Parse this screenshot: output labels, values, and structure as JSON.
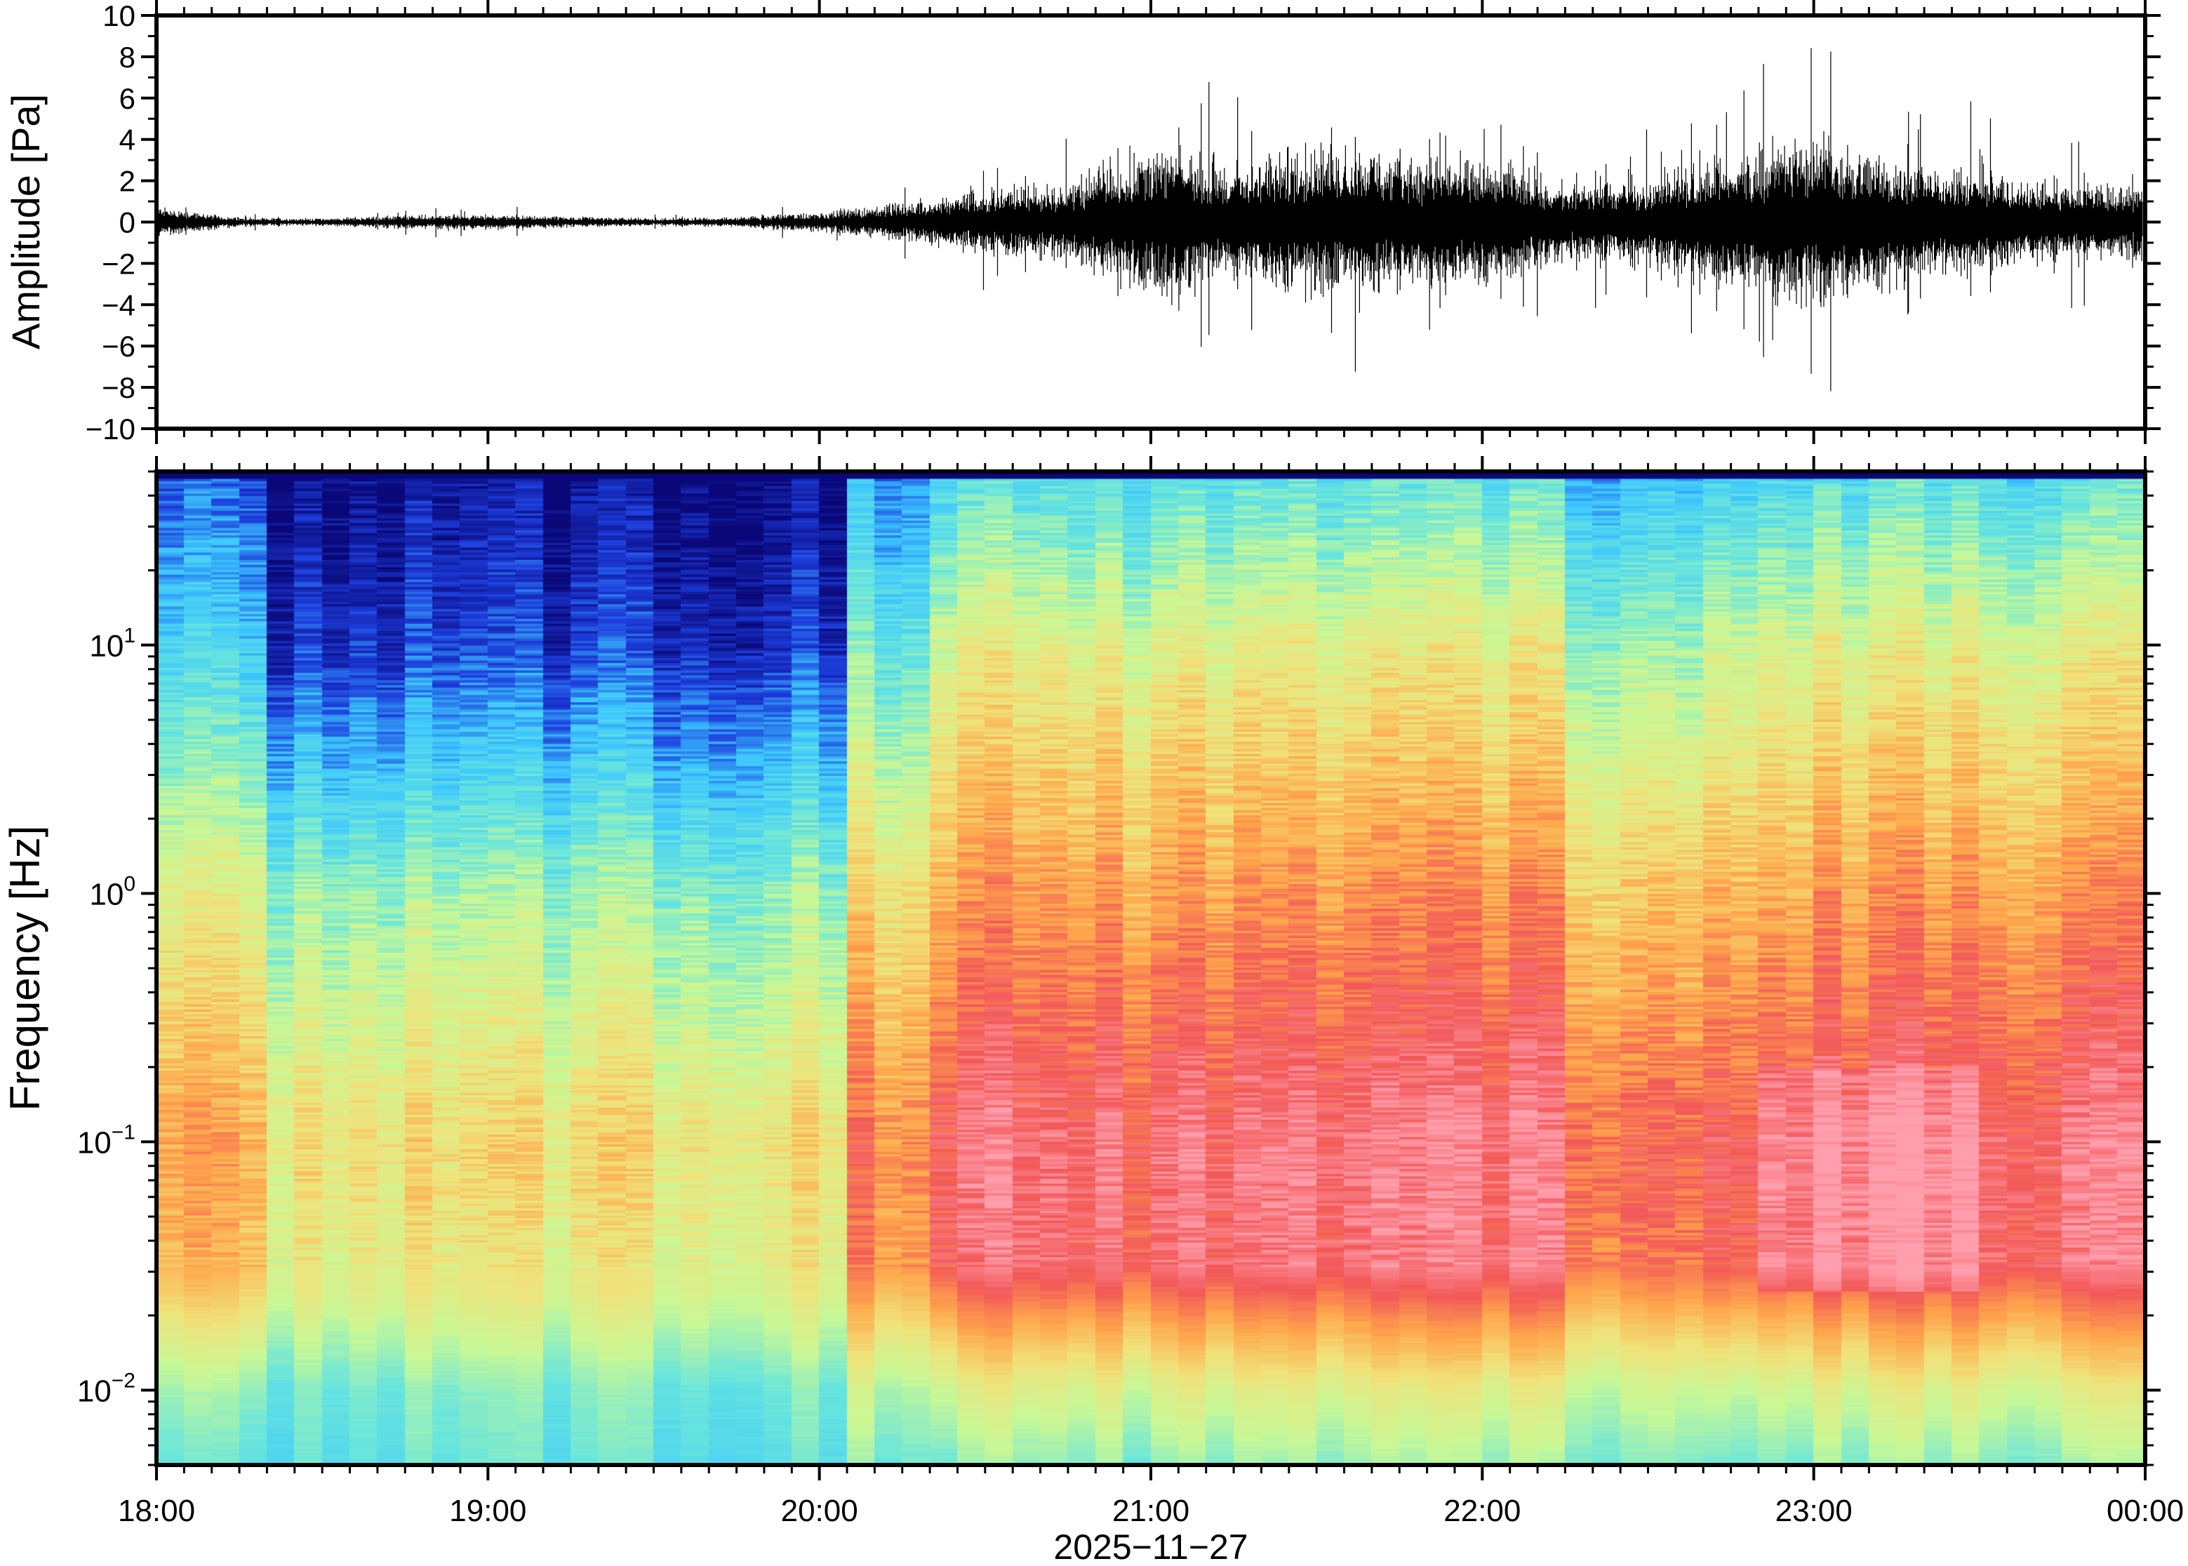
{
  "chart_data": [
    {
      "type": "line",
      "ylabel": "Amplitude [Pa]",
      "ylim": [
        -10,
        10
      ],
      "yticks": [
        "10",
        "8",
        "6",
        "4",
        "2",
        "0",
        "−2",
        "−4",
        "−6",
        "−8",
        "−10"
      ],
      "ytick_values": [
        10,
        8,
        6,
        4,
        2,
        0,
        -2,
        -4,
        -6,
        -8,
        -10
      ],
      "xlim": [
        "2025-11-27 18:00",
        "2025-11-28 00:00"
      ],
      "series": [
        {
          "color": "#000000",
          "envelope_interval_minutes": 15,
          "envelope_start": "18:00",
          "peak_amplitude_pa": [
            1.2,
            0.3,
            0.3,
            0.5,
            0.6,
            0.4,
            0.3,
            0.4,
            0.8,
            1.5,
            2.5,
            3,
            6,
            4.5,
            6,
            5,
            5,
            3,
            3.5,
            5,
            7,
            5,
            4,
            3
          ]
        }
      ],
      "grid": false
    },
    {
      "type": "heatmap",
      "ylabel": "Frequency [Hz]",
      "yscale": "log",
      "ylim": [
        0.005,
        50
      ],
      "yticks": [
        {
          "base": "10",
          "exp": "1",
          "value": 10
        },
        {
          "base": "10",
          "exp": "0",
          "value": 1
        },
        {
          "base": "10",
          "exp": "−1",
          "value": 0.1
        },
        {
          "base": "10",
          "exp": "−2",
          "value": 0.01
        }
      ],
      "xlabel": "2025−11−27",
      "xticks": [
        "18:00",
        "19:00",
        "20:00",
        "21:00",
        "22:00",
        "23:00",
        "00:00"
      ],
      "xlim": [
        "2025-11-27 18:00",
        "2025-11-28 00:00"
      ],
      "colormap": [
        "#0a0878",
        "#1d3ddc",
        "#3cc6ff",
        "#6ae6dc",
        "#c8f896",
        "#f0e27a",
        "#ffa64c",
        "#f25858",
        "#ff9eac"
      ],
      "activity_by_time": {
        "18:00-18:20": "moderate",
        "18:20-20:05": "quiet",
        "20:05-24:00": "high"
      },
      "grid": false
    }
  ]
}
